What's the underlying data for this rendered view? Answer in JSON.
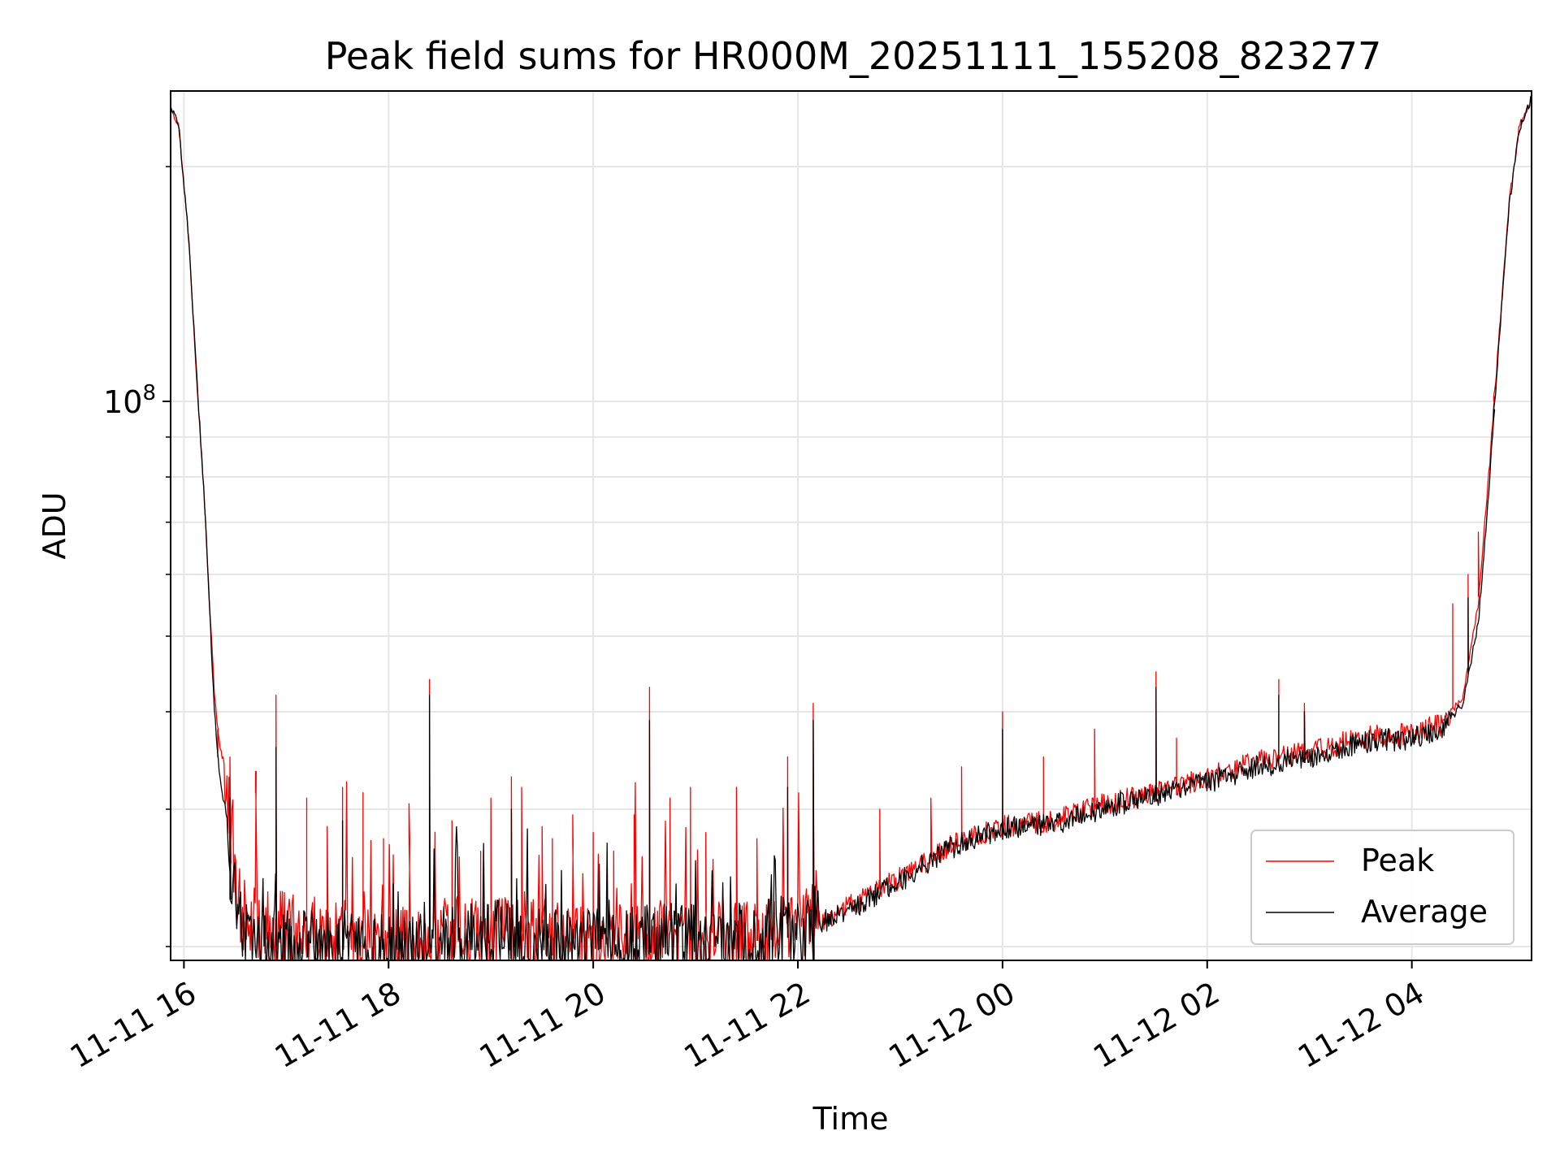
{
  "chart_data": {
    "type": "line",
    "title": "Peak field sums for HR000M_20251111_155208_823277",
    "xlabel": "Time",
    "ylabel": "ADU",
    "yscale": "log",
    "x_unit": "hours since 2025-11-11 00:00",
    "xlim": [
      15.87,
      29.17
    ],
    "ylim": [
      19200000,
      250000000
    ],
    "x_ticks": [
      {
        "value": 16,
        "label": "11-11 16"
      },
      {
        "value": 18,
        "label": "11-11 18"
      },
      {
        "value": 20,
        "label": "11-11 20"
      },
      {
        "value": 22,
        "label": "11-11 22"
      },
      {
        "value": 24,
        "label": "11-12 00"
      },
      {
        "value": 26,
        "label": "11-12 02"
      },
      {
        "value": 28,
        "label": "11-12 04"
      }
    ],
    "y_ticks": [
      {
        "value": 100000000,
        "label_base": "10",
        "label_exp": "8"
      }
    ],
    "y_minor_ticks": [
      20000000,
      30000000,
      40000000,
      50000000,
      60000000,
      70000000,
      80000000,
      90000000,
      200000000
    ],
    "grid": true,
    "legend": {
      "position": "lower-right",
      "entries": [
        "Peak",
        "Average"
      ]
    },
    "series": [
      {
        "name": "Peak",
        "color": "#ff0000",
        "points": [
          [
            15.87,
            240000000
          ],
          [
            15.95,
            225000000
          ],
          [
            16.05,
            160000000
          ],
          [
            16.12,
            110000000
          ],
          [
            16.2,
            75000000
          ],
          [
            16.25,
            55000000
          ],
          [
            16.3,
            42000000
          ],
          [
            16.35,
            36000000
          ],
          [
            16.4,
            34000000
          ],
          [
            16.45,
            29000000
          ],
          [
            16.5,
            24000000
          ],
          [
            16.6,
            21500000
          ],
          [
            16.8,
            21000000
          ],
          [
            17.0,
            21000000
          ],
          [
            17.5,
            20500000
          ],
          [
            18.0,
            20000000
          ],
          [
            18.5,
            20500000
          ],
          [
            19.0,
            21000000
          ],
          [
            19.5,
            20500000
          ],
          [
            20.0,
            20000000
          ],
          [
            20.5,
            20500000
          ],
          [
            21.0,
            20500000
          ],
          [
            21.5,
            20500000
          ],
          [
            22.0,
            21000000
          ],
          [
            22.5,
            22500000
          ],
          [
            23.0,
            24500000
          ],
          [
            23.5,
            27000000
          ],
          [
            24.0,
            28500000
          ],
          [
            24.5,
            29000000
          ],
          [
            25.0,
            30500000
          ],
          [
            25.5,
            31500000
          ],
          [
            26.0,
            33000000
          ],
          [
            26.5,
            34500000
          ],
          [
            27.0,
            35500000
          ],
          [
            27.5,
            37000000
          ],
          [
            28.0,
            37500000
          ],
          [
            28.3,
            38500000
          ],
          [
            28.5,
            42000000
          ],
          [
            28.65,
            55000000
          ],
          [
            28.75,
            80000000
          ],
          [
            28.85,
            120000000
          ],
          [
            28.95,
            180000000
          ],
          [
            29.05,
            225000000
          ],
          [
            29.17,
            245000000
          ]
        ],
        "spikes": [
          [
            16.33,
            35000000
          ],
          [
            16.45,
            35000000
          ],
          [
            16.7,
            31500000
          ],
          [
            16.9,
            42000000
          ],
          [
            17.2,
            31000000
          ],
          [
            17.4,
            28500000
          ],
          [
            17.55,
            32000000
          ],
          [
            17.75,
            31500000
          ],
          [
            17.95,
            27500000
          ],
          [
            18.2,
            30500000
          ],
          [
            18.4,
            44000000
          ],
          [
            18.62,
            29000000
          ],
          [
            18.9,
            26500000
          ],
          [
            19.0,
            31000000
          ],
          [
            19.2,
            33000000
          ],
          [
            19.3,
            32000000
          ],
          [
            19.5,
            28500000
          ],
          [
            19.6,
            27500000
          ],
          [
            19.8,
            29500000
          ],
          [
            20.0,
            28000000
          ],
          [
            20.2,
            26500000
          ],
          [
            20.4,
            29500000
          ],
          [
            20.55,
            43000000
          ],
          [
            20.75,
            31000000
          ],
          [
            20.95,
            32000000
          ],
          [
            21.1,
            28000000
          ],
          [
            21.4,
            32000000
          ],
          [
            21.6,
            27500000
          ],
          [
            21.9,
            35000000
          ],
          [
            22.15,
            41000000
          ],
          [
            22.8,
            30000000
          ],
          [
            23.3,
            31000000
          ],
          [
            23.6,
            34000000
          ],
          [
            24.0,
            40000000
          ],
          [
            24.4,
            35000000
          ],
          [
            24.9,
            38000000
          ],
          [
            25.5,
            45000000
          ],
          [
            25.7,
            37000000
          ],
          [
            26.7,
            44000000
          ],
          [
            26.95,
            41000000
          ],
          [
            28.4,
            55000000
          ],
          [
            28.55,
            60000000
          ],
          [
            28.65,
            68000000
          ],
          [
            28.8,
            100000000
          ]
        ]
      },
      {
        "name": "Average",
        "color": "#000000",
        "points": [
          [
            15.87,
            240000000
          ],
          [
            15.95,
            225000000
          ],
          [
            16.05,
            160000000
          ],
          [
            16.12,
            110000000
          ],
          [
            16.2,
            75000000
          ],
          [
            16.25,
            54000000
          ],
          [
            16.3,
            40000000
          ],
          [
            16.35,
            33000000
          ],
          [
            16.4,
            30000000
          ],
          [
            16.45,
            26000000
          ],
          [
            16.5,
            22000000
          ],
          [
            16.6,
            20500000
          ],
          [
            16.8,
            20200000
          ],
          [
            17.0,
            20000000
          ],
          [
            17.5,
            19800000
          ],
          [
            18.0,
            19600000
          ],
          [
            18.5,
            20000000
          ],
          [
            19.0,
            20500000
          ],
          [
            19.5,
            20200000
          ],
          [
            20.0,
            19800000
          ],
          [
            20.5,
            20200000
          ],
          [
            21.0,
            20300000
          ],
          [
            21.5,
            20300000
          ],
          [
            22.0,
            20800000
          ],
          [
            22.5,
            22300000
          ],
          [
            23.0,
            24300000
          ],
          [
            23.5,
            26800000
          ],
          [
            24.0,
            28300000
          ],
          [
            24.5,
            28700000
          ],
          [
            25.0,
            30200000
          ],
          [
            25.5,
            31200000
          ],
          [
            26.0,
            32500000
          ],
          [
            26.5,
            34000000
          ],
          [
            27.0,
            35000000
          ],
          [
            27.5,
            36600000
          ],
          [
            28.0,
            37000000
          ],
          [
            28.3,
            38000000
          ],
          [
            28.5,
            41000000
          ],
          [
            28.65,
            52000000
          ],
          [
            28.75,
            76000000
          ],
          [
            28.85,
            118000000
          ],
          [
            28.95,
            178000000
          ],
          [
            29.05,
            223000000
          ],
          [
            29.17,
            245000000
          ]
        ],
        "spikes": [
          [
            16.45,
            31000000
          ],
          [
            16.9,
            36000000
          ],
          [
            17.55,
            29000000
          ],
          [
            18.4,
            42000000
          ],
          [
            19.2,
            30000000
          ],
          [
            20.55,
            39000000
          ],
          [
            21.9,
            32000000
          ],
          [
            22.15,
            39000000
          ],
          [
            24.0,
            38000000
          ],
          [
            25.5,
            43000000
          ],
          [
            26.7,
            42000000
          ],
          [
            26.95,
            40000000
          ],
          [
            28.55,
            56000000
          ],
          [
            28.8,
            95000000
          ]
        ]
      }
    ]
  }
}
